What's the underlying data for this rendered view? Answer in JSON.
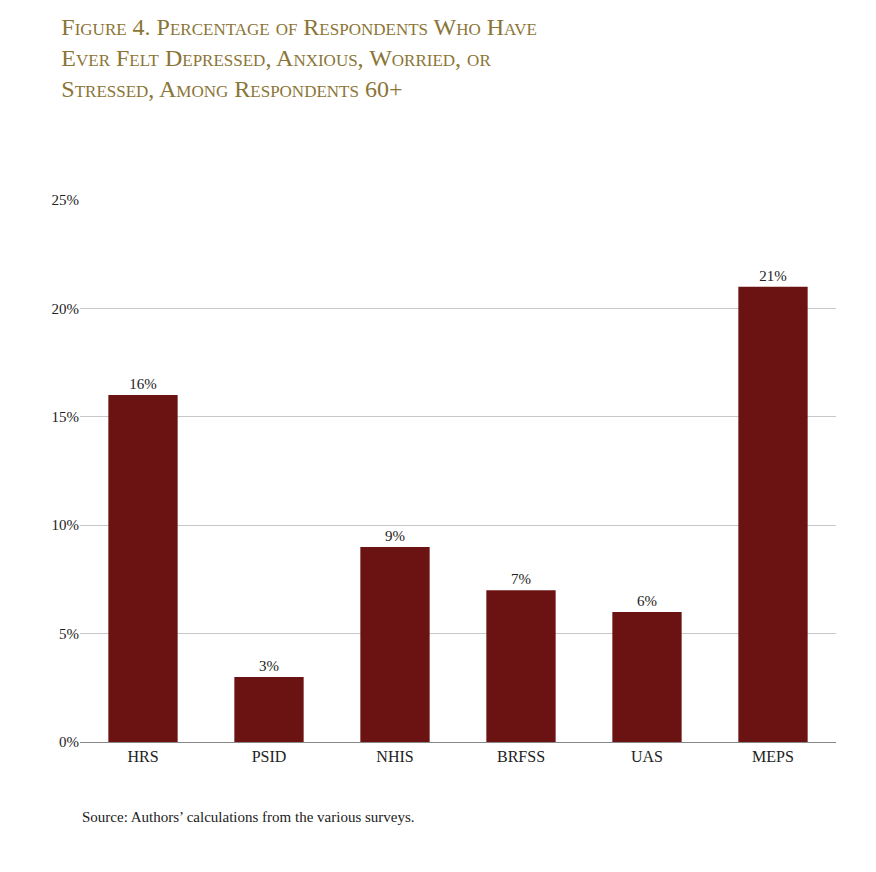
{
  "chart_data": {
    "type": "bar",
    "title": "Figure 4. Percentage of Respondents Who Have\nEver Felt Depressed, Anxious, Worried, or\nStressed, Among Respondents 60+",
    "annotations": [
      "Source: Authors’ calculations from the various surveys."
    ],
    "categories": [
      "HRS",
      "PSID",
      "NHIS",
      "BRFSS",
      "UAS",
      "MEPS"
    ],
    "values": [
      16,
      3,
      9,
      7,
      6,
      21
    ],
    "value_labels": [
      "16%",
      "3%",
      "9%",
      "7%",
      "6%",
      "21%"
    ],
    "data_labels": true,
    "color": "#6B1212",
    "ylim": [
      0,
      25
    ],
    "yticks": [
      {
        "value": 0,
        "label": "0%"
      },
      {
        "value": 5,
        "label": "5%"
      },
      {
        "value": 10,
        "label": "10%"
      },
      {
        "value": 15,
        "label": "15%"
      },
      {
        "value": 20,
        "label": "20%"
      },
      {
        "value": 25,
        "label": "25%"
      }
    ],
    "grid": true
  }
}
